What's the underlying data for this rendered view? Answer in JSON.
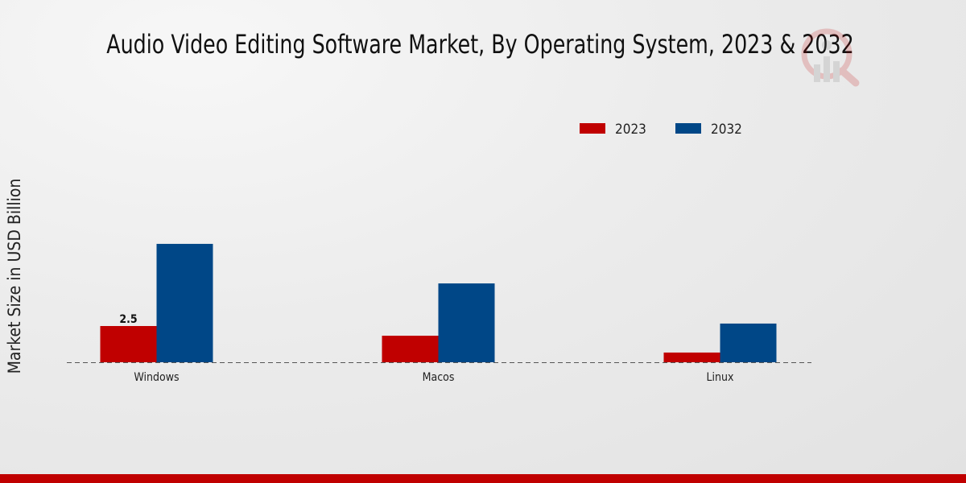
{
  "chart_data": {
    "type": "bar",
    "title": "Audio Video Editing Software Market, By Operating System, 2023 & 2032",
    "xlabel": "",
    "ylabel": "Market Size in USD Billion",
    "categories": [
      "Windows",
      "Macos",
      "Linux"
    ],
    "series": [
      {
        "name": "2023",
        "color": "#c00000",
        "values": [
          2.5,
          1.83,
          0.67
        ]
      },
      {
        "name": "2032",
        "color": "#004787",
        "values": [
          8.17,
          5.44,
          2.67
        ]
      }
    ],
    "data_labels": [
      {
        "series": "2023",
        "category": "Windows",
        "text": "2.5"
      }
    ],
    "ylim": [
      0,
      10
    ],
    "grid": false,
    "legend_position": "top-right"
  }
}
